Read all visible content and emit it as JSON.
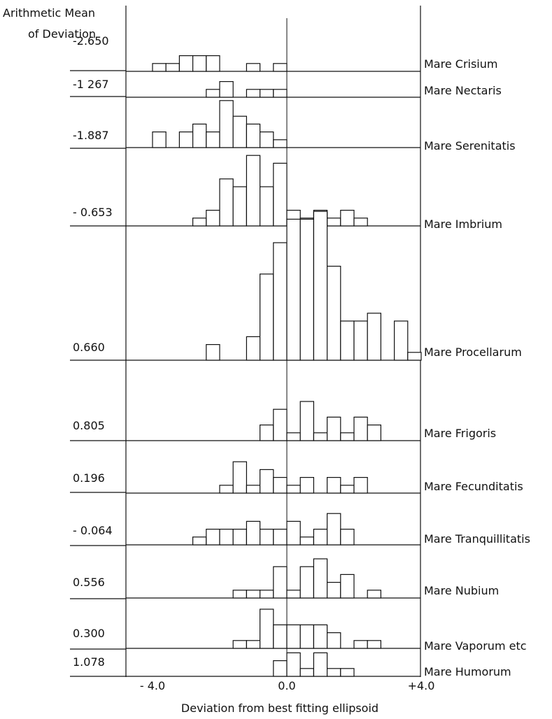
{
  "chart_data": {
    "type": "bar",
    "title_lines": [
      "Arithmetic Mean",
      "of Deviation"
    ],
    "xlabel": "Deviation from best fitting ellipsoid",
    "xlim": [
      -4.0,
      4.0
    ],
    "bin_width": 0.4,
    "x_ticks": [
      {
        "value": -4.0,
        "label": "- 4.0"
      },
      {
        "value": 0.0,
        "label": "0.0"
      },
      {
        "value": 4.0,
        "label": "+4.0"
      }
    ],
    "series": [
      {
        "name": "Mare Crisium",
        "mean_label": "-2.650",
        "bins": [
          [
            -4.0,
            1
          ],
          [
            -3.6,
            1
          ],
          [
            -3.2,
            2
          ],
          [
            -2.8,
            2
          ],
          [
            -2.4,
            2
          ],
          [
            -1.2,
            1
          ],
          [
            -0.4,
            1
          ]
        ]
      },
      {
        "name": "Mare Nectaris",
        "mean_label": "-1 267",
        "bins": [
          [
            -2.4,
            1
          ],
          [
            -2.0,
            2
          ],
          [
            -1.2,
            1
          ],
          [
            -0.8,
            1
          ],
          [
            -0.4,
            1
          ]
        ]
      },
      {
        "name": "Mare Serenitatis",
        "mean_label": "-1.887",
        "bins": [
          [
            -4.0,
            2
          ],
          [
            -3.2,
            2
          ],
          [
            -2.8,
            3
          ],
          [
            -2.4,
            2
          ],
          [
            -2.0,
            6
          ],
          [
            -1.6,
            4
          ],
          [
            -1.2,
            3
          ],
          [
            -0.8,
            2
          ],
          [
            -0.4,
            1
          ]
        ]
      },
      {
        "name": "Mare Imbrium",
        "mean_label": "- 0.653",
        "bins": [
          [
            -2.8,
            1
          ],
          [
            -2.4,
            2
          ],
          [
            -2.0,
            6
          ],
          [
            -1.6,
            5
          ],
          [
            -1.2,
            9
          ],
          [
            -0.8,
            5
          ],
          [
            -0.4,
            8
          ],
          [
            0.0,
            2
          ],
          [
            0.4,
            1
          ],
          [
            0.8,
            2
          ],
          [
            1.2,
            1
          ],
          [
            1.6,
            2
          ],
          [
            2.0,
            1
          ]
        ]
      },
      {
        "name": "Mare Procellarum",
        "mean_label": "0.660",
        "bins": [
          [
            -2.4,
            2
          ],
          [
            -1.2,
            3
          ],
          [
            -0.8,
            11
          ],
          [
            -0.4,
            15
          ],
          [
            0.0,
            18
          ],
          [
            0.4,
            18
          ],
          [
            0.8,
            19
          ],
          [
            1.2,
            12
          ],
          [
            1.6,
            5
          ],
          [
            2.0,
            5
          ],
          [
            2.4,
            6
          ],
          [
            3.2,
            5
          ],
          [
            3.6,
            1
          ]
        ]
      },
      {
        "name": "Mare Frigoris",
        "mean_label": "0.805",
        "bins": [
          [
            -0.8,
            2
          ],
          [
            -0.4,
            4
          ],
          [
            0.0,
            1
          ],
          [
            0.4,
            5
          ],
          [
            0.8,
            1
          ],
          [
            1.2,
            3
          ],
          [
            1.6,
            1
          ],
          [
            2.0,
            3
          ],
          [
            2.4,
            2
          ]
        ]
      },
      {
        "name": "Mare Fecunditatis",
        "mean_label": "0.196",
        "bins": [
          [
            -2.0,
            1
          ],
          [
            -1.6,
            4
          ],
          [
            -1.2,
            1
          ],
          [
            -0.8,
            3
          ],
          [
            -0.4,
            2
          ],
          [
            0.0,
            1
          ],
          [
            0.4,
            2
          ],
          [
            1.2,
            2
          ],
          [
            1.6,
            1
          ],
          [
            2.0,
            2
          ]
        ]
      },
      {
        "name": "Mare Tranquillitatis",
        "mean_label": "- 0.064",
        "bins": [
          [
            -2.8,
            1
          ],
          [
            -2.4,
            2
          ],
          [
            -2.0,
            2
          ],
          [
            -1.6,
            2
          ],
          [
            -1.2,
            3
          ],
          [
            -0.8,
            2
          ],
          [
            -0.4,
            2
          ],
          [
            0.0,
            3
          ],
          [
            0.4,
            1
          ],
          [
            0.8,
            2
          ],
          [
            1.2,
            4
          ],
          [
            1.6,
            2
          ]
        ]
      },
      {
        "name": "Mare Nubium",
        "mean_label": "0.556",
        "bins": [
          [
            -1.6,
            1
          ],
          [
            -1.2,
            1
          ],
          [
            -0.8,
            1
          ],
          [
            -0.4,
            4
          ],
          [
            0.0,
            1
          ],
          [
            0.4,
            4
          ],
          [
            0.8,
            5
          ],
          [
            1.2,
            2
          ],
          [
            1.6,
            3
          ],
          [
            2.4,
            1
          ]
        ]
      },
      {
        "name": "Mare Vaporum etc",
        "mean_label": "0.300",
        "bins": [
          [
            -1.6,
            1
          ],
          [
            -1.2,
            1
          ],
          [
            -0.8,
            5
          ],
          [
            -0.4,
            3
          ],
          [
            0.0,
            3
          ],
          [
            0.4,
            3
          ],
          [
            0.8,
            3
          ],
          [
            1.2,
            2
          ],
          [
            2.0,
            1
          ],
          [
            2.4,
            1
          ]
        ]
      },
      {
        "name": "Mare Humorum",
        "mean_label": "1.078",
        "bins": [
          [
            -0.4,
            2
          ],
          [
            0.0,
            3
          ],
          [
            0.4,
            1
          ],
          [
            0.8,
            3
          ],
          [
            1.2,
            1
          ],
          [
            1.6,
            1
          ]
        ]
      }
    ]
  }
}
